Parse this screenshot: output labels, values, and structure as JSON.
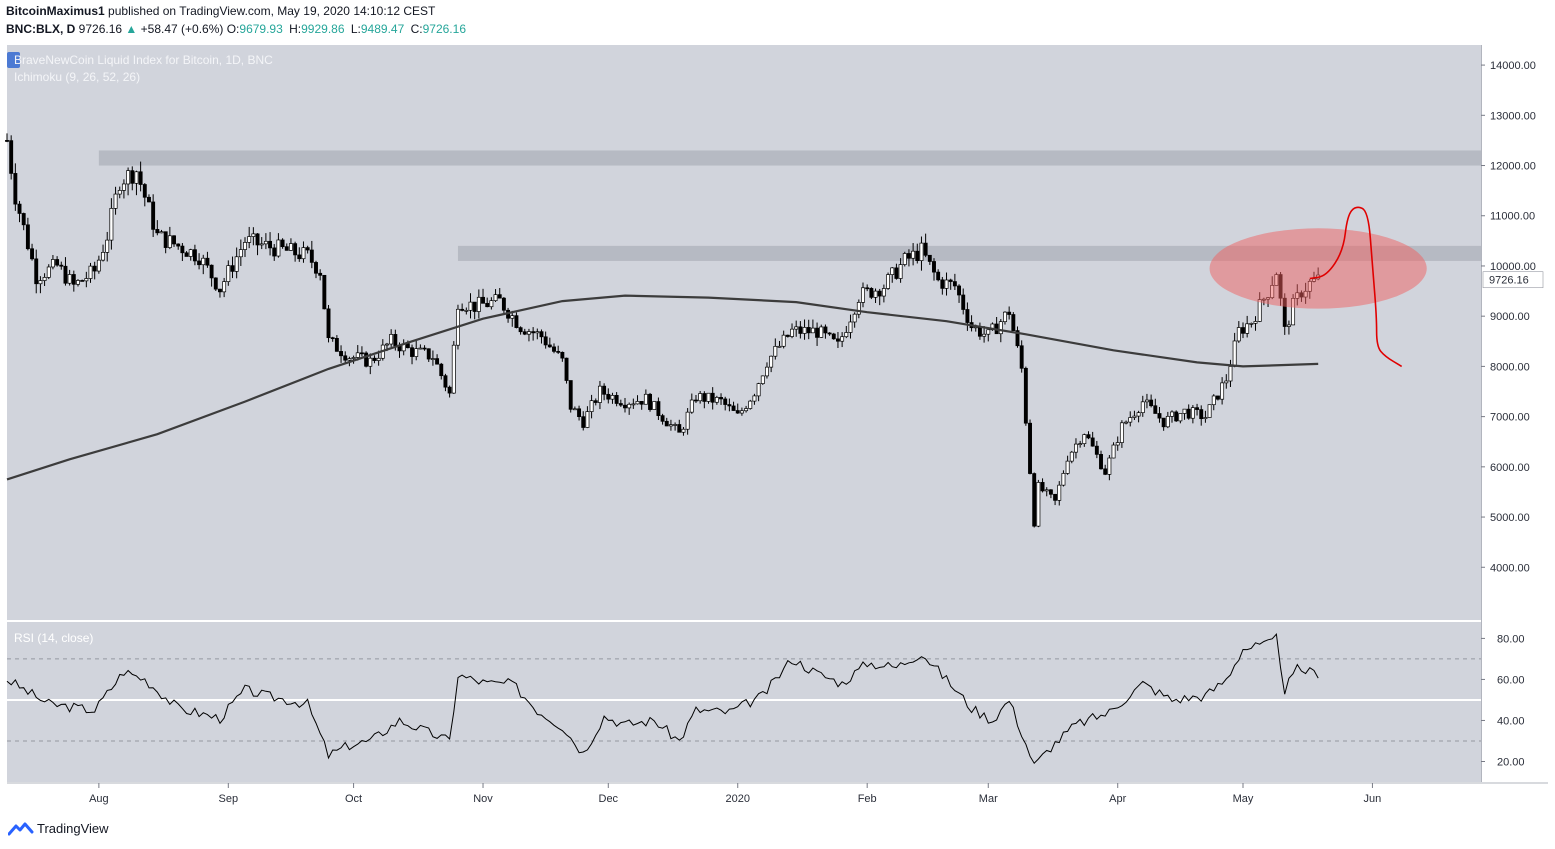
{
  "header": {
    "author": "BitcoinMaximus1",
    "published": "published on TradingView.com, May 19, 2020 14:10:12 CEST",
    "symbol": "BNC:BLX, D",
    "last": "9726.16",
    "change_arrow": "▲",
    "change": "+58.47 (+0.6%)",
    "o_label": "O:",
    "o": "9679.93",
    "h_label": "H:",
    "h": "9929.86",
    "l_label": "L:",
    "l": "9489.47",
    "c_label": "C:",
    "c": "9726.16"
  },
  "footer": {
    "brand": "TradingView"
  },
  "colors": {
    "pane_bg": "#d1d4dc",
    "candle_up": "#ffffff",
    "candle_down": "#000000",
    "ma": "#3c3c3c",
    "zone": "#b2b5be",
    "highlight": "#f06060",
    "projection": "#e00000",
    "rsi_line": "#000000",
    "price_tag_bg": "#ffffff"
  },
  "chart_data": [
    {
      "type": "candlestick",
      "title": "BraveNewCoin Liquid Index for Bitcoin, 1D, BNC",
      "indicator": "Ichimoku (9, 26, 52, 26)",
      "y_ticks": [
        "14000.00",
        "13000.00",
        "12000.00",
        "11000.00",
        "10000.00",
        "9000.00",
        "8000.00",
        "7000.00",
        "6000.00",
        "5000.00",
        "4000.00"
      ],
      "last_price_label": "9726.16",
      "ylim": [
        2950,
        14400
      ],
      "x_ticks": [
        "Aug",
        "Sep",
        "Oct",
        "Nov",
        "Dec",
        "2020",
        "Feb",
        "Mar",
        "Apr",
        "May",
        "Jun"
      ],
      "x_tick_dates": [
        "2019-08-01",
        "2019-09-01",
        "2019-10-01",
        "2019-11-01",
        "2019-12-01",
        "2020-01-01",
        "2020-02-01",
        "2020-03-01",
        "2020-04-01",
        "2020-05-01",
        "2020-06-01"
      ],
      "x_range": [
        "2019-07-10",
        "2020-06-27"
      ],
      "resistance_zones": [
        {
          "x_start": "2019-08-01",
          "low": 12000,
          "high": 12300
        },
        {
          "x_start": "2019-10-26",
          "low": 10100,
          "high": 10400
        }
      ],
      "highlight_ellipse": {
        "x_center": "2020-05-19",
        "y_center": 9950,
        "x_radius_days": 26,
        "y_radius": 800
      },
      "projection_path": [
        {
          "x": "2020-05-17",
          "y": 9750
        },
        {
          "x": "2020-05-21",
          "y": 9800
        },
        {
          "x": "2020-05-25",
          "y": 10300
        },
        {
          "x": "2020-05-26",
          "y": 11000
        },
        {
          "x": "2020-05-28",
          "y": 11200
        },
        {
          "x": "2020-05-31",
          "y": 11100
        },
        {
          "x": "2020-06-01",
          "y": 10000
        },
        {
          "x": "2020-06-02",
          "y": 9000
        },
        {
          "x": "2020-06-02",
          "y": 8400
        },
        {
          "x": "2020-06-04",
          "y": 8200
        },
        {
          "x": "2020-06-08",
          "y": 8000
        }
      ],
      "moving_average": [
        {
          "x": "2019-07-10",
          "y": 5750
        },
        {
          "x": "2019-07-25",
          "y": 6150
        },
        {
          "x": "2019-08-15",
          "y": 6650
        },
        {
          "x": "2019-09-05",
          "y": 7300
        },
        {
          "x": "2019-09-25",
          "y": 7950
        },
        {
          "x": "2019-10-15",
          "y": 8500
        },
        {
          "x": "2019-11-01",
          "y": 8950
        },
        {
          "x": "2019-11-20",
          "y": 9300
        },
        {
          "x": "2019-12-05",
          "y": 9410
        },
        {
          "x": "2019-12-25",
          "y": 9370
        },
        {
          "x": "2020-01-15",
          "y": 9280
        },
        {
          "x": "2020-02-01",
          "y": 9080
        },
        {
          "x": "2020-02-20",
          "y": 8900
        },
        {
          "x": "2020-03-10",
          "y": 8640
        },
        {
          "x": "2020-03-31",
          "y": 8320
        },
        {
          "x": "2020-04-20",
          "y": 8080
        },
        {
          "x": "2020-05-01",
          "y": 8000
        },
        {
          "x": "2020-05-19",
          "y": 8050
        }
      ],
      "price_path": [
        {
          "x": "2019-07-10",
          "y": 12500
        },
        {
          "x": "2019-07-12",
          "y": 11400
        },
        {
          "x": "2019-07-17",
          "y": 9800
        },
        {
          "x": "2019-07-22",
          "y": 10000
        },
        {
          "x": "2019-07-26",
          "y": 9600
        },
        {
          "x": "2019-07-31",
          "y": 9900
        },
        {
          "x": "2019-08-03",
          "y": 10600
        },
        {
          "x": "2019-08-06",
          "y": 11700
        },
        {
          "x": "2019-08-10",
          "y": 11900
        },
        {
          "x": "2019-08-15",
          "y": 10600
        },
        {
          "x": "2019-08-20",
          "y": 10400
        },
        {
          "x": "2019-08-25",
          "y": 10200
        },
        {
          "x": "2019-08-30",
          "y": 9550
        },
        {
          "x": "2019-09-05",
          "y": 10500
        },
        {
          "x": "2019-09-10",
          "y": 10400
        },
        {
          "x": "2019-09-15",
          "y": 10300
        },
        {
          "x": "2019-09-20",
          "y": 10200
        },
        {
          "x": "2019-09-23",
          "y": 9900
        },
        {
          "x": "2019-09-25",
          "y": 8500
        },
        {
          "x": "2019-09-30",
          "y": 8200
        },
        {
          "x": "2019-10-05",
          "y": 8100
        },
        {
          "x": "2019-10-10",
          "y": 8500
        },
        {
          "x": "2019-10-15",
          "y": 8300
        },
        {
          "x": "2019-10-20",
          "y": 8200
        },
        {
          "x": "2019-10-24",
          "y": 7450
        },
        {
          "x": "2019-10-26",
          "y": 9300
        },
        {
          "x": "2019-10-30",
          "y": 9200
        },
        {
          "x": "2019-11-05",
          "y": 9300
        },
        {
          "x": "2019-11-10",
          "y": 8800
        },
        {
          "x": "2019-11-15",
          "y": 8600
        },
        {
          "x": "2019-11-20",
          "y": 8100
        },
        {
          "x": "2019-11-22",
          "y": 7200
        },
        {
          "x": "2019-11-25",
          "y": 6900
        },
        {
          "x": "2019-11-29",
          "y": 7500
        },
        {
          "x": "2019-12-05",
          "y": 7300
        },
        {
          "x": "2019-12-10",
          "y": 7350
        },
        {
          "x": "2019-12-18",
          "y": 6650
        },
        {
          "x": "2019-12-22",
          "y": 7400
        },
        {
          "x": "2019-12-28",
          "y": 7300
        },
        {
          "x": "2020-01-01",
          "y": 7000
        },
        {
          "x": "2020-01-05",
          "y": 7500
        },
        {
          "x": "2020-01-08",
          "y": 8100
        },
        {
          "x": "2020-01-14",
          "y": 8700
        },
        {
          "x": "2020-01-20",
          "y": 8700
        },
        {
          "x": "2020-01-25",
          "y": 8400
        },
        {
          "x": "2020-01-30",
          "y": 9400
        },
        {
          "x": "2020-02-05",
          "y": 9600
        },
        {
          "x": "2020-02-10",
          "y": 10100
        },
        {
          "x": "2020-02-14",
          "y": 10300
        },
        {
          "x": "2020-02-18",
          "y": 9700
        },
        {
          "x": "2020-02-22",
          "y": 9600
        },
        {
          "x": "2020-02-26",
          "y": 8800
        },
        {
          "x": "2020-03-01",
          "y": 8600
        },
        {
          "x": "2020-03-06",
          "y": 9100
        },
        {
          "x": "2020-03-09",
          "y": 7950
        },
        {
          "x": "2020-03-12",
          "y": 4900
        },
        {
          "x": "2020-03-13",
          "y": 5600
        },
        {
          "x": "2020-03-17",
          "y": 5300
        },
        {
          "x": "2020-03-20",
          "y": 6200
        },
        {
          "x": "2020-03-24",
          "y": 6700
        },
        {
          "x": "2020-03-29",
          "y": 5900
        },
        {
          "x": "2020-04-02",
          "y": 6800
        },
        {
          "x": "2020-04-07",
          "y": 7300
        },
        {
          "x": "2020-04-12",
          "y": 6900
        },
        {
          "x": "2020-04-17",
          "y": 7100
        },
        {
          "x": "2020-04-22",
          "y": 7000
        },
        {
          "x": "2020-04-27",
          "y": 7750
        },
        {
          "x": "2020-04-30",
          "y": 8700
        },
        {
          "x": "2020-05-03",
          "y": 8900
        },
        {
          "x": "2020-05-07",
          "y": 9500
        },
        {
          "x": "2020-05-09",
          "y": 9900
        },
        {
          "x": "2020-05-11",
          "y": 8700
        },
        {
          "x": "2020-05-13",
          "y": 9200
        },
        {
          "x": "2020-05-15",
          "y": 9500
        },
        {
          "x": "2020-05-17",
          "y": 9650
        },
        {
          "x": "2020-05-19",
          "y": 9726
        }
      ]
    },
    {
      "type": "line",
      "title": "RSI (14, close)",
      "y_ticks": [
        "80.00",
        "60.00",
        "40.00",
        "20.00"
      ],
      "ylim": [
        10,
        88
      ],
      "reference_lines": [
        70,
        50,
        30
      ],
      "series": [
        {
          "points": [
            {
              "x": "2019-07-10",
              "y": 60
            },
            {
              "x": "2019-07-20",
              "y": 48
            },
            {
              "x": "2019-07-31",
              "y": 45
            },
            {
              "x": "2019-08-07",
              "y": 64
            },
            {
              "x": "2019-08-12",
              "y": 60
            },
            {
              "x": "2019-08-20",
              "y": 46
            },
            {
              "x": "2019-08-30",
              "y": 41
            },
            {
              "x": "2019-09-05",
              "y": 55
            },
            {
              "x": "2019-09-10",
              "y": 52
            },
            {
              "x": "2019-09-20",
              "y": 48
            },
            {
              "x": "2019-09-25",
              "y": 23
            },
            {
              "x": "2019-09-30",
              "y": 28
            },
            {
              "x": "2019-10-05",
              "y": 30
            },
            {
              "x": "2019-10-12",
              "y": 40
            },
            {
              "x": "2019-10-18",
              "y": 35
            },
            {
              "x": "2019-10-24",
              "y": 30
            },
            {
              "x": "2019-10-26",
              "y": 62
            },
            {
              "x": "2019-11-02",
              "y": 58
            },
            {
              "x": "2019-11-08",
              "y": 58
            },
            {
              "x": "2019-11-14",
              "y": 45
            },
            {
              "x": "2019-11-20",
              "y": 37
            },
            {
              "x": "2019-11-25",
              "y": 24
            },
            {
              "x": "2019-11-30",
              "y": 42
            },
            {
              "x": "2019-12-05",
              "y": 38
            },
            {
              "x": "2019-12-12",
              "y": 40
            },
            {
              "x": "2019-12-18",
              "y": 30
            },
            {
              "x": "2019-12-22",
              "y": 45
            },
            {
              "x": "2019-12-30",
              "y": 44
            },
            {
              "x": "2020-01-07",
              "y": 52
            },
            {
              "x": "2020-01-14",
              "y": 70
            },
            {
              "x": "2020-01-20",
              "y": 63
            },
            {
              "x": "2020-01-26",
              "y": 58
            },
            {
              "x": "2020-02-01",
              "y": 68
            },
            {
              "x": "2020-02-08",
              "y": 66
            },
            {
              "x": "2020-02-14",
              "y": 73
            },
            {
              "x": "2020-02-20",
              "y": 60
            },
            {
              "x": "2020-02-26",
              "y": 46
            },
            {
              "x": "2020-03-02",
              "y": 40
            },
            {
              "x": "2020-03-06",
              "y": 50
            },
            {
              "x": "2020-03-12",
              "y": 18
            },
            {
              "x": "2020-03-16",
              "y": 27
            },
            {
              "x": "2020-03-22",
              "y": 38
            },
            {
              "x": "2020-03-30",
              "y": 44
            },
            {
              "x": "2020-04-07",
              "y": 58
            },
            {
              "x": "2020-04-14",
              "y": 50
            },
            {
              "x": "2020-04-22",
              "y": 52
            },
            {
              "x": "2020-04-27",
              "y": 60
            },
            {
              "x": "2020-05-01",
              "y": 75
            },
            {
              "x": "2020-05-07",
              "y": 77
            },
            {
              "x": "2020-05-09",
              "y": 80
            },
            {
              "x": "2020-05-11",
              "y": 55
            },
            {
              "x": "2020-05-14",
              "y": 65
            },
            {
              "x": "2020-05-19",
              "y": 63
            }
          ]
        }
      ]
    }
  ]
}
